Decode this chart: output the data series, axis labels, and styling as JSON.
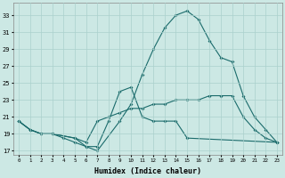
{
  "line_upper": {
    "x": [
      0,
      1,
      2,
      3,
      5,
      6,
      7,
      9,
      10,
      11,
      12,
      13,
      14,
      15,
      16,
      17,
      18,
      19,
      20,
      21,
      22,
      23
    ],
    "y": [
      20.5,
      19.5,
      19,
      19,
      18.5,
      17.5,
      17,
      20.5,
      22.5,
      26,
      29,
      31.5,
      33,
      33.5,
      32.5,
      30,
      28,
      27.5,
      23.5,
      21,
      19.5,
      18
    ]
  },
  "line_middle": {
    "x": [
      0,
      1,
      2,
      3,
      5,
      6,
      7,
      8,
      9,
      10,
      11,
      12,
      13,
      14,
      15,
      16,
      17,
      18,
      19,
      20,
      21,
      22,
      23
    ],
    "y": [
      20.5,
      19.5,
      19,
      19,
      18.5,
      18,
      20.5,
      21,
      21.5,
      22,
      22,
      22.5,
      22.5,
      23,
      23,
      23,
      23.5,
      23.5,
      23.5,
      21,
      19.5,
      18.5,
      18
    ]
  },
  "line_lower": {
    "x": [
      0,
      1,
      2,
      3,
      4,
      5,
      6,
      7,
      8,
      9,
      10,
      11,
      12,
      13,
      14,
      15,
      23
    ],
    "y": [
      20.5,
      19.5,
      19,
      19,
      18.5,
      18,
      17.5,
      17.5,
      20.5,
      24,
      24.5,
      21,
      20.5,
      20.5,
      20.5,
      18.5,
      18
    ]
  },
  "bg_color": "#cce8e4",
  "grid_color": "#aad0cc",
  "line_color": "#1a6b6b",
  "ylabel_vals": [
    17,
    19,
    21,
    23,
    25,
    27,
    29,
    31,
    33
  ],
  "xlim": [
    -0.5,
    23.5
  ],
  "ylim": [
    16.5,
    34.5
  ],
  "xlabel": "Humidex (Indice chaleur)"
}
